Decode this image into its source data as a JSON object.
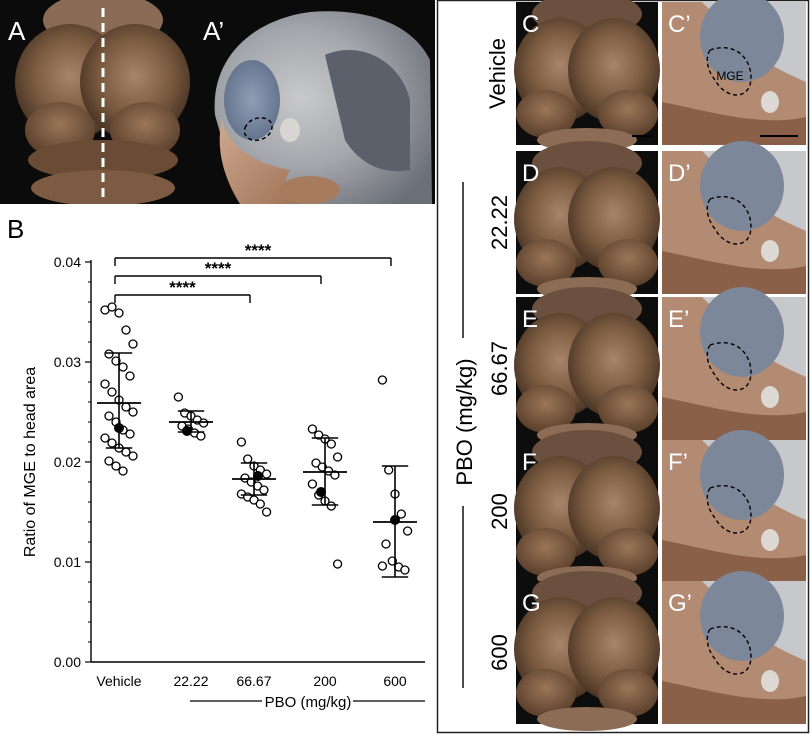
{
  "panels": {
    "A": "A",
    "A_prime": "A’",
    "B": "B",
    "C": "C",
    "C_prime": "C’",
    "D": "D",
    "D_prime": "D’",
    "E": "E",
    "E_prime": "E’",
    "F": "F",
    "F_prime": "F’",
    "G": "G",
    "G_prime": "G’"
  },
  "right_column": {
    "rows": [
      "Vehicle",
      "22.22",
      "66.67",
      "200",
      "600"
    ],
    "axis_label": "PBO (mg/kg)",
    "mge_label": "MGE"
  },
  "chart_data": {
    "type": "scatter",
    "ylabel": "Ratio of MGE to head area",
    "xlabel": "PBO (mg/kg)",
    "categories": [
      "Vehicle",
      "22.22",
      "66.67",
      "200",
      "600"
    ],
    "ylim": [
      0,
      0.04
    ],
    "yticks": [
      "0.00",
      "0.01",
      "0.02",
      "0.03",
      "0.04"
    ],
    "series": [
      {
        "values": [
          [
            0.0352,
            0.0355,
            0.0349,
            0.0332,
            0.0318,
            0.0308,
            0.0301,
            0.0295,
            0.0286,
            0.0278,
            0.027,
            0.0262,
            0.0255,
            0.025,
            0.0246,
            0.024,
            0.0232,
            0.0228,
            0.0224,
            0.0219,
            0.0214,
            0.021,
            0.0206,
            0.0201,
            0.0196,
            0.0191
          ],
          [
            0.0265,
            0.0249,
            0.0246,
            0.0242,
            0.0239,
            0.0236,
            0.0233,
            0.0229,
            0.0226
          ],
          [
            0.022,
            0.0203,
            0.0196,
            0.0192,
            0.0188,
            0.0184,
            0.018,
            0.0176,
            0.0172,
            0.0168,
            0.0165,
            0.0162,
            0.0158,
            0.015
          ],
          [
            0.0233,
            0.0227,
            0.0223,
            0.0218,
            0.0205,
            0.0199,
            0.0195,
            0.0191,
            0.0187,
            0.0178,
            0.0167,
            0.0161,
            0.0156,
            0.0098
          ],
          [
            0.0282,
            0.0192,
            0.0168,
            0.0148,
            0.0131,
            0.0118,
            0.0101,
            0.0095,
            0.0092,
            0.0096
          ]
        ]
      }
    ],
    "highlighted": [
      0.0234,
      0.0231,
      0.0186,
      0.017,
      0.0142
    ],
    "means": [
      0.0259,
      0.024,
      0.0183,
      0.019,
      0.014
    ],
    "sd_upper": [
      0.0309,
      0.0251,
      0.0199,
      0.0224,
      0.0196
    ],
    "sd_lower": [
      0.0214,
      0.023,
      0.0167,
      0.0157,
      0.0085
    ],
    "comparisons": [
      {
        "from": "Vehicle",
        "to": "66.67",
        "label": "****"
      },
      {
        "from": "Vehicle",
        "to": "200",
        "label": "****"
      },
      {
        "from": "Vehicle",
        "to": "600",
        "label": "****"
      }
    ]
  }
}
